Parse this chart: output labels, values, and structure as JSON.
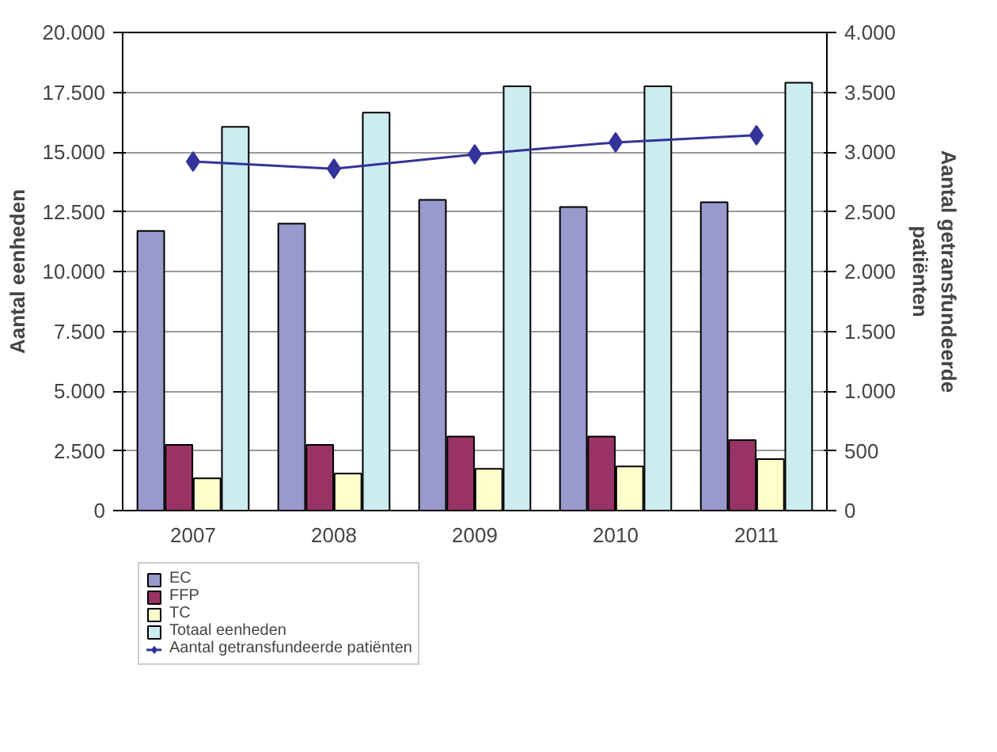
{
  "chart_data": {
    "type": "bar",
    "categories": [
      "2007",
      "2008",
      "2009",
      "2010",
      "2011"
    ],
    "ylabel": "Aantal eenheden",
    "y2label": "Aantal getransfundeerde\npatiënten",
    "ylim": [
      0,
      20000
    ],
    "yticks": [
      {
        "value": 0,
        "label": "0"
      },
      {
        "value": 2500,
        "label": "2.500"
      },
      {
        "value": 5000,
        "label": "5.000"
      },
      {
        "value": 7500,
        "label": "7.500"
      },
      {
        "value": 10000,
        "label": "10.000"
      },
      {
        "value": 12500,
        "label": "12.500"
      },
      {
        "value": 15000,
        "label": "15.000"
      },
      {
        "value": 17500,
        "label": "17.500"
      },
      {
        "value": 20000,
        "label": "20.000"
      }
    ],
    "y2lim": [
      0,
      4000
    ],
    "y2ticks": [
      {
        "value": 0,
        "label": "0"
      },
      {
        "value": 500,
        "label": "500"
      },
      {
        "value": 1000,
        "label": "1.000"
      },
      {
        "value": 1500,
        "label": "1.500"
      },
      {
        "value": 2000,
        "label": "2.000"
      },
      {
        "value": 2500,
        "label": "2.500"
      },
      {
        "value": 3000,
        "label": "3.000"
      },
      {
        "value": 3500,
        "label": "3.500"
      },
      {
        "value": 4000,
        "label": "4.000"
      }
    ],
    "grid": "y",
    "legend": "bottom left",
    "series": [
      {
        "name": "EC",
        "color": "#9999cc",
        "values": [
          11700,
          12000,
          13000,
          12700,
          12900
        ]
      },
      {
        "name": "FFP",
        "color": "#993366",
        "values": [
          2750,
          2750,
          3100,
          3100,
          2950
        ]
      },
      {
        "name": "TC",
        "color": "#ffffcc",
        "values": [
          1350,
          1550,
          1750,
          1850,
          2150
        ]
      },
      {
        "name": "Totaal eenheden",
        "color": "#ccecf0",
        "values": [
          16050,
          16650,
          17750,
          17750,
          17900
        ]
      },
      {
        "name": "Aantal getransfundeerde patiënten",
        "type": "line",
        "axis": "y2",
        "marker": "diamond",
        "color": "#333399",
        "values": [
          2920,
          2860,
          2980,
          3080,
          3140
        ]
      }
    ]
  }
}
